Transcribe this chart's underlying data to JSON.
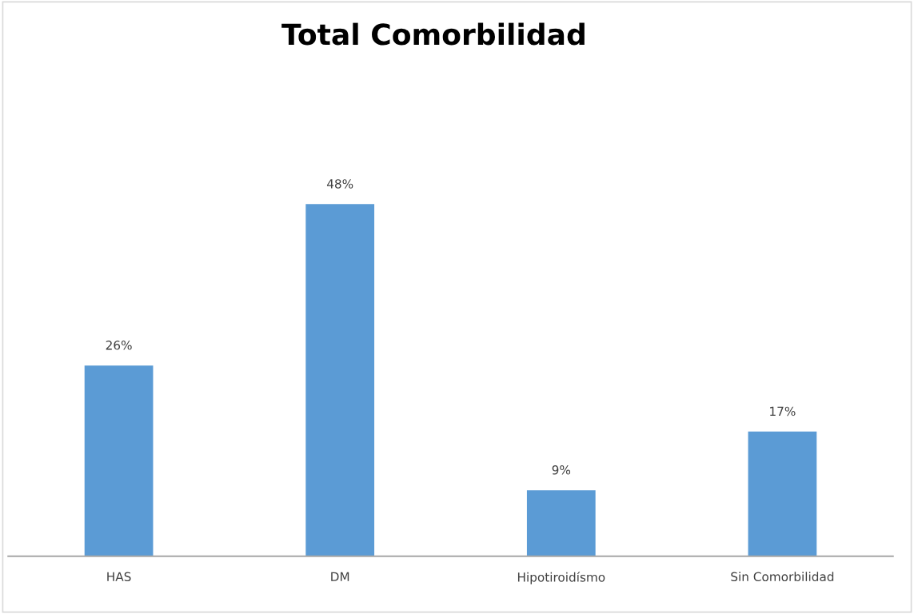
{
  "chart_data": {
    "type": "bar",
    "title": "Total Comorbilidad",
    "categories": [
      "HAS",
      "DM",
      "Hipotiroidísmo",
      "Sin Comorbilidad"
    ],
    "values": [
      26,
      48,
      9,
      17
    ],
    "value_labels": [
      "26%",
      "48%",
      "9%",
      "17%"
    ],
    "color": "#5b9bd5",
    "grid": false,
    "legend": false
  }
}
